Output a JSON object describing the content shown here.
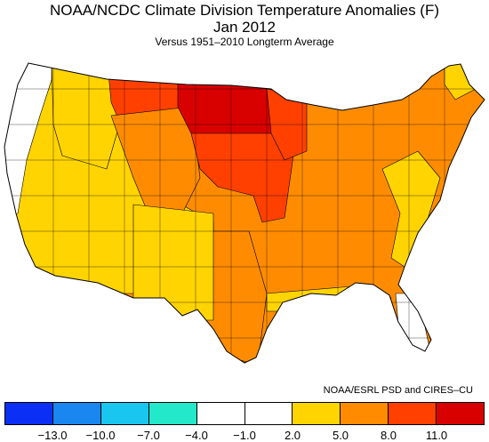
{
  "title": "NOAA/NCDC Climate Division Temperature Anomalies (F)",
  "subtitle": "Jan 2012",
  "note": "Versus 1951–2010 Longterm Average",
  "credit": "NOAA/ESRL PSD and CIRES–CU",
  "legend": {
    "colors": [
      "#0b2ff5",
      "#1a86f0",
      "#19c6f0",
      "#23e8c9",
      "#ffffff",
      "#ffffff",
      "#ffd400",
      "#ff8c00",
      "#ff4000",
      "#d90000"
    ],
    "ticks": [
      "−13.0",
      "−10.0",
      "−7.0",
      "−4.0",
      "−1.0",
      "2.0",
      "5.0",
      "8.0",
      "11.0"
    ]
  },
  "map": {
    "regions": [
      {
        "name": "pacific-northwest-coast",
        "bin": "white"
      },
      {
        "name": "great-basin-west",
        "bin": "yellow"
      },
      {
        "name": "california",
        "bin": "yellow"
      },
      {
        "name": "southwest",
        "bin": "yellow"
      },
      {
        "name": "northern-rockies",
        "bin": "orange"
      },
      {
        "name": "montana-east",
        "bin": "red"
      },
      {
        "name": "north-dakota-minnesota",
        "bin": "darkred"
      },
      {
        "name": "south-dakota-iowa",
        "bin": "red"
      },
      {
        "name": "central-plains",
        "bin": "orange"
      },
      {
        "name": "texas",
        "bin": "orange"
      },
      {
        "name": "midwest",
        "bin": "orange"
      },
      {
        "name": "southeast",
        "bin": "orange"
      },
      {
        "name": "appalachian",
        "bin": "yellow"
      },
      {
        "name": "northeast",
        "bin": "orange"
      },
      {
        "name": "maine-north",
        "bin": "yellow"
      },
      {
        "name": "florida-south",
        "bin": "white"
      },
      {
        "name": "gulf-coast",
        "bin": "yellow"
      }
    ]
  }
}
